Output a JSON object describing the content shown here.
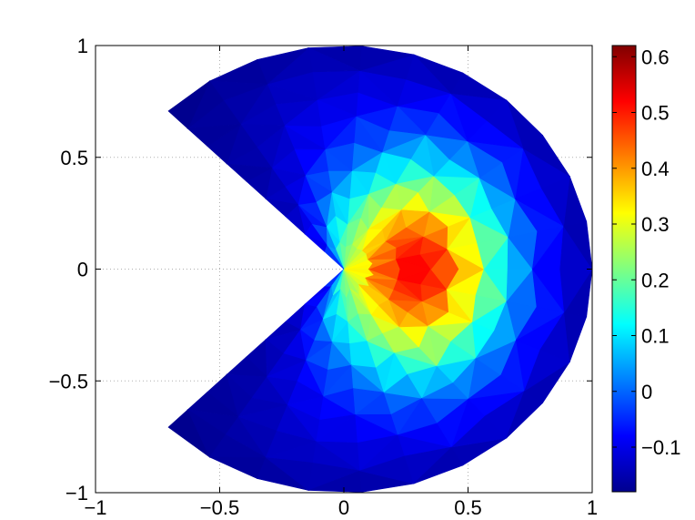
{
  "chart_data": {
    "type": "heatmap",
    "description_domain": "pacman-shaped unit disk with a 90 degree wedge removed on the left, triangulated mesh, colored by value",
    "xlim": [
      -1,
      1
    ],
    "ylim": [
      -1,
      1
    ],
    "grid": true,
    "grid_style": "dotted",
    "colormap": "jet",
    "colorbar": {
      "placement": "right",
      "clim": [
        -0.18,
        0.62
      ],
      "ticks": [
        -0.1,
        0,
        0.1,
        0.2,
        0.3,
        0.4,
        0.5,
        0.6
      ],
      "tick_labels": [
        "−0.1",
        "0",
        "0.1",
        "0.2",
        "0.3",
        "0.4",
        "0.5",
        "0.6"
      ]
    },
    "xticks": [
      -1,
      -0.5,
      0,
      0.5,
      1
    ],
    "xtick_labels": [
      "−1",
      "−0.5",
      "0",
      "0.5",
      "1"
    ],
    "yticks": [
      -1,
      -0.5,
      0,
      0.5,
      1
    ],
    "ytick_labels": [
      "−1",
      "−0.5",
      "0",
      "0.5",
      "1"
    ],
    "domain_shape": {
      "outer_radius": 1,
      "wedge_open_angles_deg": [
        135,
        225
      ]
    },
    "field": {
      "peak_value": 0.62,
      "peak_location": [
        0.33,
        0.0
      ],
      "min_value": -0.18
    }
  }
}
